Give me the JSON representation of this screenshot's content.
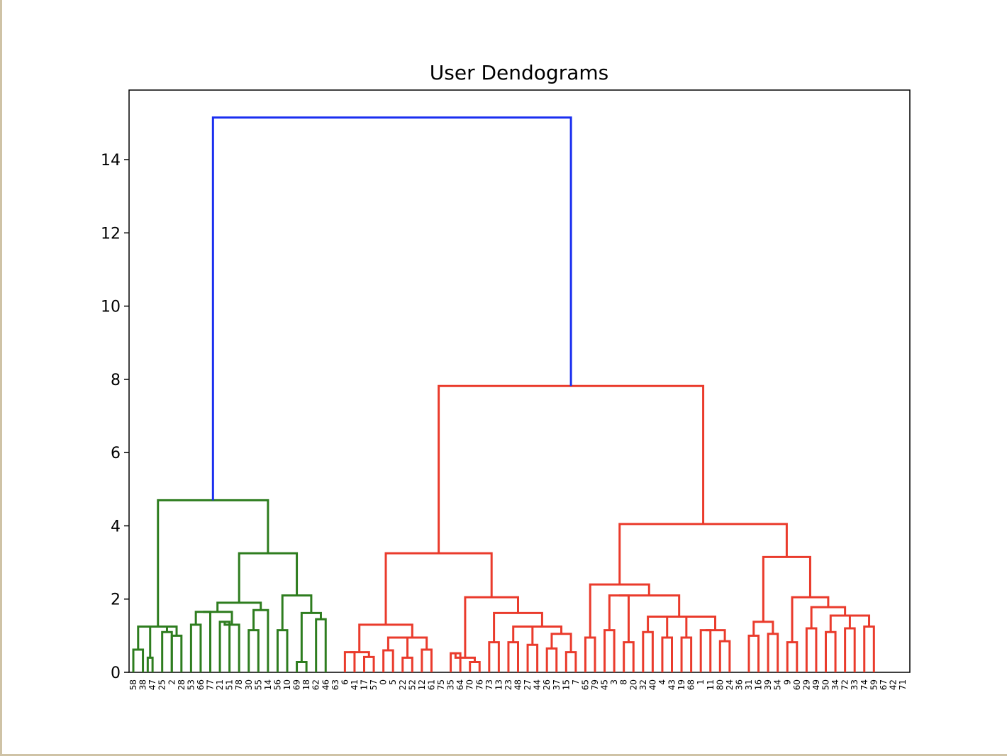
{
  "chart_data": {
    "type": "dendrogram",
    "title": "User Dendograms",
    "xlabel": "",
    "ylabel": "",
    "ylim": [
      0,
      15.9
    ],
    "yticks": [
      0,
      2,
      4,
      6,
      8,
      10,
      12,
      14
    ],
    "grid": false,
    "colors": {
      "green_cluster": "#2e7d1f",
      "red_cluster": "#ea3b2c",
      "root_link": "#1a2ff0"
    },
    "leaves": [
      "58",
      "38",
      "47",
      "25",
      "2",
      "28",
      "53",
      "66",
      "77",
      "21",
      "51",
      "78",
      "30",
      "55",
      "14",
      "56",
      "10",
      "69",
      "18",
      "62",
      "46",
      "63",
      "6",
      "41",
      "17",
      "57",
      "0",
      "5",
      "22",
      "52",
      "12",
      "61",
      "75",
      "35",
      "64",
      "70",
      "76",
      "73",
      "13",
      "23",
      "48",
      "27",
      "44",
      "26",
      "37",
      "15",
      "7",
      "65",
      "79",
      "45",
      "3",
      "8",
      "20",
      "32",
      "40",
      "4",
      "43",
      "19",
      "68",
      "1",
      "11",
      "80",
      "24",
      "36",
      "31",
      "16",
      "39",
      "54",
      "9",
      "60",
      "29",
      "49",
      "50",
      "34",
      "72",
      "33",
      "74",
      "59",
      "67",
      "42",
      "71"
    ],
    "merges": [
      {
        "a": "L0",
        "b": "L1",
        "height": 0.62,
        "color": "green"
      },
      {
        "a": "m0",
        "b": "L2",
        "height": 0.4,
        "color": "green",
        "note": "inner"
      },
      {
        "a": "m0",
        "b": "L2",
        "height": 1.25,
        "color": "green"
      },
      {
        "a": "L3",
        "b": "L4",
        "height": 1.1,
        "color": "green"
      },
      {
        "a": "L5",
        "b": "L6",
        "height": 1.0,
        "color": "green"
      },
      {
        "a": "L7",
        "b": "L8",
        "height": 1.3,
        "color": "green"
      },
      {
        "a": "L9",
        "b": "L10",
        "height": 1.38,
        "color": "green"
      },
      {
        "a": "L11",
        "b": "L12",
        "height": 1.25,
        "color": "green"
      },
      {
        "a": "L13",
        "b": "L14",
        "height": 1.15,
        "color": "green"
      },
      {
        "a": "L15",
        "b": "L16",
        "height": 1.45,
        "color": "green"
      },
      {
        "a": "L17",
        "b": "L18",
        "height": 1.15,
        "color": "green"
      },
      {
        "a": "L19",
        "b": "L20",
        "height": 0.28,
        "color": "green"
      },
      {
        "a": "L21",
        "b": "L22",
        "height": 1.45,
        "color": "green"
      },
      {
        "a": "top",
        "b": "top",
        "height": 15.15,
        "color": "blue"
      },
      {
        "a": "red",
        "b": "red",
        "height": 7.82,
        "color": "red"
      },
      {
        "a": "green",
        "b": "green",
        "height": 4.7,
        "color": "green"
      }
    ]
  }
}
